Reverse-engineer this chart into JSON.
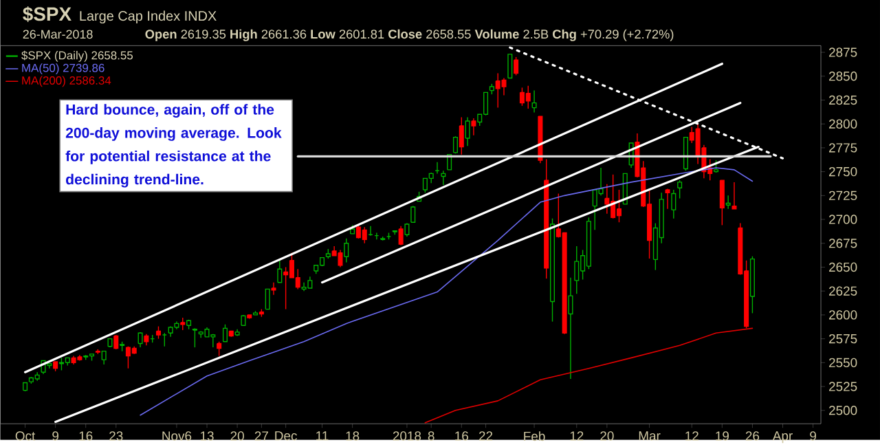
{
  "chart_data": {
    "type": "candlestick",
    "title": "$SPX",
    "subtitle": "Large Cap Index INDX",
    "annotations": [
      "26-Mar-2018",
      "**Open** 2619.35 **High** 2661.36 **Low** 2601.81 **Close** 2658.55 **Volume** 2.5B **Chg** +70.29 (+2.72%)",
      "Hard bounce, again, off of the 200-day moving average. Look for potential resistance at the declining trend-line."
    ],
    "ylim": [
      2486,
      2882
    ],
    "categories": [
      "Oct",
      null,
      null,
      null,
      null,
      "9",
      null,
      null,
      null,
      null,
      "16",
      null,
      null,
      null,
      null,
      "23",
      null,
      null,
      null,
      null,
      null,
      null,
      null,
      null,
      null,
      "Nov6",
      null,
      null,
      null,
      null,
      "13",
      null,
      null,
      null,
      null,
      "20",
      null,
      null,
      null,
      "27",
      null,
      null,
      null,
      "Dec",
      null,
      null,
      null,
      null,
      null,
      "11",
      null,
      null,
      null,
      null,
      "18",
      null,
      null,
      null,
      null,
      null,
      null,
      null,
      null,
      "2018",
      null,
      null,
      null,
      "8",
      null,
      null,
      null,
      null,
      "16",
      null,
      null,
      null,
      "22",
      null,
      null,
      null,
      null,
      null,
      null,
      null,
      "Feb",
      null,
      null,
      null,
      null,
      null,
      null,
      "12",
      null,
      null,
      null,
      null,
      "20",
      null,
      null,
      null,
      null,
      null,
      null,
      "Mar",
      null,
      null,
      null,
      null,
      null,
      null,
      "12",
      null,
      null,
      null,
      null,
      "19",
      null,
      null,
      null,
      null,
      "26",
      null,
      null,
      null,
      null,
      "Apr",
      null,
      null,
      null,
      null,
      "9"
    ],
    "yticks": [
      2500,
      2525,
      2550,
      2575,
      2600,
      2625,
      2650,
      2675,
      2700,
      2725,
      2750,
      2775,
      2800,
      2825,
      2850,
      2875
    ],
    "legend": "top left",
    "series": [
      {
        "name": "$SPX (Daily) 2658.55",
        "ohlc": [
          [
            2521,
            2529,
            2520,
            2529
          ],
          [
            2530,
            2535,
            2528,
            2534
          ],
          [
            2533,
            2540,
            2531,
            2537
          ],
          [
            2540,
            2552,
            2538,
            2552
          ],
          [
            2547,
            2549,
            2544,
            2549
          ],
          [
            2551,
            2551,
            2541,
            2544
          ],
          [
            2549,
            2555,
            2542,
            2550
          ],
          [
            2550,
            2555,
            2547,
            2555
          ],
          [
            2555,
            2557,
            2548,
            2550
          ],
          [
            2556,
            2558,
            2552,
            2553
          ],
          [
            2556,
            2558,
            2553,
            2557
          ],
          [
            2557,
            2559,
            2552,
            2559
          ],
          [
            2562,
            2564,
            2559,
            2561
          ],
          [
            2553,
            2562,
            2548,
            2562
          ],
          [
            2567,
            2575,
            2566,
            2575
          ],
          [
            2578,
            2579,
            2564,
            2565
          ],
          [
            2568,
            2572,
            2562,
            2569
          ],
          [
            2566,
            2567,
            2544,
            2557
          ],
          [
            2565,
            2567,
            2559,
            2560
          ],
          [
            2570,
            2582,
            2566,
            2581
          ],
          [
            2578,
            2580,
            2568,
            2572
          ],
          [
            2575,
            2579,
            2571,
            2575
          ],
          [
            2583,
            2588,
            2575,
            2579
          ],
          [
            2579,
            2581,
            2567,
            2579
          ],
          [
            2581,
            2588,
            2577,
            2587
          ],
          [
            2587,
            2593,
            2585,
            2591
          ],
          [
            2592,
            2597,
            2584,
            2590
          ],
          [
            2589,
            2595,
            2585,
            2594
          ],
          [
            2584,
            2586,
            2566,
            2585
          ],
          [
            2580,
            2583,
            2576,
            2582
          ],
          [
            2577,
            2587,
            2577,
            2585
          ],
          [
            2577,
            2580,
            2566,
            2579
          ],
          [
            2570,
            2572,
            2557,
            2565
          ],
          [
            2572,
            2590,
            2572,
            2586
          ],
          [
            2583,
            2583,
            2577,
            2578
          ],
          [
            2579,
            2585,
            2578,
            2582
          ],
          [
            2589,
            2600,
            2589,
            2599
          ],
          [
            2600,
            2600,
            2596,
            2597
          ],
          [
            2600,
            2604,
            2600,
            2602
          ],
          [
            2603,
            2606,
            2598,
            2601
          ],
          [
            2606,
            2627,
            2606,
            2627
          ],
          [
            2628,
            2634,
            2621,
            2626
          ],
          [
            2634,
            2657,
            2634,
            2648
          ],
          [
            2645,
            2650,
            2606,
            2642
          ],
          [
            2657,
            2665,
            2639,
            2639
          ],
          [
            2639,
            2648,
            2627,
            2629
          ],
          [
            2627,
            2634,
            2625,
            2629
          ],
          [
            2628,
            2640,
            2628,
            2636
          ],
          [
            2646,
            2652,
            2643,
            2652
          ],
          [
            2652,
            2660,
            2651,
            2660
          ],
          [
            2661,
            2669,
            2659,
            2664
          ],
          [
            2667,
            2672,
            2662,
            2662
          ],
          [
            2665,
            2668,
            2650,
            2652
          ],
          [
            2661,
            2680,
            2655,
            2675
          ],
          [
            2685,
            2694,
            2685,
            2690
          ],
          [
            2692,
            2694,
            2680,
            2681
          ],
          [
            2689,
            2692,
            2675,
            2679
          ],
          [
            2684,
            2693,
            2683,
            2684
          ],
          [
            2683,
            2686,
            2679,
            2683
          ],
          [
            2679,
            2682,
            2678,
            2680
          ],
          [
            2682,
            2686,
            2679,
            2682
          ],
          [
            2687,
            2688,
            2684,
            2688
          ],
          [
            2690,
            2693,
            2673,
            2674
          ],
          [
            2684,
            2696,
            2682,
            2695
          ],
          [
            2697,
            2714,
            2697,
            2713
          ],
          [
            2719,
            2729,
            2719,
            2724
          ],
          [
            2731,
            2743,
            2728,
            2743
          ],
          [
            2743,
            2749,
            2738,
            2748
          ],
          [
            2751,
            2760,
            2748,
            2751
          ],
          [
            2745,
            2751,
            2736,
            2748
          ],
          [
            2752,
            2768,
            2752,
            2768
          ],
          [
            2770,
            2787,
            2769,
            2786
          ],
          [
            2798,
            2807,
            2768,
            2776
          ],
          [
            2785,
            2807,
            2777,
            2803
          ],
          [
            2803,
            2806,
            2788,
            2798
          ],
          [
            2802,
            2810,
            2798,
            2810
          ],
          [
            2810,
            2833,
            2809,
            2833
          ],
          [
            2835,
            2842,
            2831,
            2839
          ],
          [
            2845,
            2853,
            2817,
            2837
          ],
          [
            2846,
            2848,
            2830,
            2839
          ],
          [
            2848,
            2873,
            2848,
            2873
          ],
          [
            2867,
            2870,
            2851,
            2853
          ],
          [
            2833,
            2838,
            2819,
            2822
          ],
          [
            2832,
            2840,
            2816,
            2824
          ],
          [
            2817,
            2835,
            2812,
            2822
          ],
          [
            2808,
            2808,
            2759,
            2762
          ],
          [
            2741,
            2763,
            2638,
            2649
          ],
          [
            2614,
            2701,
            2593,
            2695
          ],
          [
            2690,
            2727,
            2681,
            2682
          ],
          [
            2686,
            2686,
            2580,
            2581
          ],
          [
            2601,
            2639,
            2533,
            2620
          ],
          [
            2636,
            2672,
            2622,
            2656
          ],
          [
            2646,
            2668,
            2637,
            2662
          ],
          [
            2651,
            2702,
            2648,
            2698
          ],
          [
            2714,
            2731,
            2689,
            2731
          ],
          [
            2727,
            2754,
            2725,
            2732
          ],
          [
            2722,
            2737,
            2706,
            2716
          ],
          [
            2719,
            2747,
            2701,
            2702
          ],
          [
            2711,
            2731,
            2697,
            2704
          ],
          [
            2716,
            2748,
            2716,
            2748
          ],
          [
            2757,
            2780,
            2754,
            2780
          ],
          [
            2781,
            2790,
            2744,
            2745
          ],
          [
            2754,
            2761,
            2713,
            2714
          ],
          [
            2716,
            2730,
            2659,
            2678
          ],
          [
            2658,
            2696,
            2647,
            2691
          ],
          [
            2681,
            2728,
            2675,
            2721
          ],
          [
            2731,
            2732,
            2711,
            2728
          ],
          [
            2710,
            2731,
            2701,
            2727
          ],
          [
            2733,
            2741,
            2722,
            2739
          ],
          [
            2753,
            2786,
            2751,
            2786
          ],
          [
            2791,
            2797,
            2780,
            2783
          ],
          [
            2795,
            2801,
            2758,
            2766
          ],
          [
            2775,
            2778,
            2743,
            2750
          ],
          [
            2754,
            2763,
            2741,
            2748
          ],
          [
            2750,
            2762,
            2749,
            2752
          ],
          [
            2741,
            2741,
            2694,
            2712
          ],
          [
            2715,
            2725,
            2711,
            2717
          ],
          [
            2714,
            2739,
            2711,
            2711
          ],
          [
            2691,
            2696,
            2642,
            2643
          ],
          [
            2646,
            2657,
            2586,
            2588
          ],
          [
            2619.35,
            2661.36,
            2601.81,
            2658.55
          ],
          null,
          null,
          null,
          null,
          null,
          null,
          null,
          null,
          null,
          null
        ],
        "colors": [
          "#00b000",
          "#00b000",
          "#00b000",
          "#00b000",
          "#00b000",
          "#ff0000",
          "#00b000",
          "#00b000",
          "#ff0000",
          "#ff0000",
          "#00b000",
          "#00b000",
          "#ff0000",
          "#00b000",
          "#00b000",
          "#ff0000",
          "#00b000",
          "#ff0000",
          "#ff0000",
          "#00b000",
          "#ff0000",
          "#00b000",
          "#ff0000",
          "#00b000",
          "#00b000",
          "#00b000",
          "#ff0000",
          "#00b000",
          "#00b000",
          "#00b000",
          "#00b000",
          "#00b000",
          "#ff0000",
          "#00b000",
          "#ff0000",
          "#00b000",
          "#00b000",
          "#ff0000",
          "#00b000",
          "#ff0000",
          "#00b000",
          "#ff0000",
          "#00b000",
          "#ff0000",
          "#ff0000",
          "#ff0000",
          "#00b000",
          "#00b000",
          "#00b000",
          "#00b000",
          "#00b000",
          "#ff0000",
          "#ff0000",
          "#00b000",
          "#00b000",
          "#ff0000",
          "#ff0000",
          "#00b000",
          "#00b000",
          "#00b000",
          "#00b000",
          "#00b000",
          "#ff0000",
          "#00b000",
          "#00b000",
          "#00b000",
          "#00b000",
          "#00b000",
          "#00b000",
          "#00b000",
          "#00b000",
          "#00b000",
          "#ff0000",
          "#00b000",
          "#ff0000",
          "#00b000",
          "#00b000",
          "#00b000",
          "#ff0000",
          "#ff0000",
          "#00b000",
          "#ff0000",
          "#ff0000",
          "#ff0000",
          "#00b000",
          "#ff0000",
          "#ff0000",
          "#00b000",
          "#ff0000",
          "#ff0000",
          "#00b000",
          "#00b000",
          "#00b000",
          "#00b000",
          "#00b000",
          "#00b000",
          "#ff0000",
          "#ff0000",
          "#ff0000",
          "#00b000",
          "#00b000",
          "#ff0000",
          "#ff0000",
          "#ff0000",
          "#00b000",
          "#00b000",
          "#ff0000",
          "#00b000",
          "#00b000",
          "#00b000",
          "#ff0000",
          "#ff0000",
          "#ff0000",
          "#ff0000",
          "#00b000",
          "#ff0000",
          "#00b000",
          "#ff0000",
          "#ff0000",
          "#ff0000",
          "#00b000",
          null,
          null,
          null,
          null,
          null,
          null,
          null,
          null,
          null,
          null
        ]
      },
      {
        "type": "line",
        "name": "MA(50) 2739.86",
        "color": "#6a6af0",
        "values": [
          null,
          null,
          null,
          null,
          null,
          null,
          null,
          null,
          null,
          null,
          null,
          null,
          null,
          null,
          null,
          null,
          null,
          null,
          null,
          2495,
          null,
          null,
          null,
          null,
          null,
          null,
          null,
          null,
          null,
          null,
          2536,
          null,
          null,
          null,
          null,
          null,
          null,
          2552,
          null,
          null,
          null,
          null,
          null,
          null,
          null,
          null,
          2572,
          null,
          null,
          null,
          null,
          null,
          null,
          2591,
          null,
          null,
          null,
          null,
          null,
          null,
          null,
          null,
          null,
          null,
          null,
          null,
          null,
          null,
          2624,
          null,
          null,
          null,
          null,
          null,
          null,
          null,
          null,
          null,
          2678,
          null,
          null,
          null,
          null,
          null,
          null,
          2718,
          null,
          null,
          null,
          2725,
          null,
          null,
          null,
          null,
          null,
          null,
          null,
          null,
          null,
          null,
          2739,
          null,
          null,
          null,
          null,
          null,
          null,
          null,
          null,
          2749,
          null,
          null,
          null,
          null,
          2754,
          null,
          null,
          2752,
          null,
          null,
          2740,
          null,
          null,
          null,
          null,
          null,
          null,
          null,
          null,
          null,
          null
        ]
      },
      {
        "type": "line",
        "name": "MA(200) 2586.34",
        "color": "#e00000",
        "values": [
          null,
          null,
          null,
          null,
          null,
          null,
          null,
          null,
          null,
          null,
          null,
          null,
          null,
          null,
          null,
          null,
          null,
          null,
          null,
          null,
          null,
          null,
          null,
          null,
          null,
          null,
          null,
          null,
          null,
          null,
          null,
          null,
          null,
          null,
          null,
          null,
          null,
          null,
          null,
          null,
          null,
          null,
          null,
          null,
          null,
          null,
          null,
          null,
          null,
          null,
          null,
          null,
          null,
          null,
          null,
          null,
          null,
          null,
          null,
          null,
          null,
          null,
          null,
          null,
          null,
          null,
          2487,
          null,
          null,
          null,
          null,
          2500,
          null,
          null,
          null,
          null,
          null,
          null,
          2510,
          null,
          null,
          null,
          null,
          null,
          null,
          2532,
          null,
          null,
          null,
          null,
          null,
          null,
          null,
          2544,
          null,
          null,
          null,
          null,
          null,
          null,
          2555,
          null,
          null,
          null,
          null,
          null,
          null,
          null,
          2568,
          null,
          null,
          null,
          null,
          null,
          2581,
          null,
          null,
          null,
          null,
          null,
          2586,
          null,
          null,
          null,
          null,
          null,
          null,
          null,
          null,
          null,
          null
        ]
      },
      {
        "type": "line",
        "color": "#ffffff",
        "values": [
          2540,
          null,
          null,
          null,
          null,
          null,
          null,
          null,
          null,
          null,
          null,
          null,
          null,
          null,
          null,
          null,
          null,
          null,
          null,
          null,
          null,
          null,
          null,
          null,
          null,
          null,
          null,
          null,
          null,
          null,
          null,
          null,
          null,
          null,
          null,
          null,
          null,
          null,
          null,
          null,
          null,
          null,
          null,
          null,
          null,
          null,
          null,
          null,
          null,
          null,
          null,
          null,
          null,
          null,
          null,
          null,
          null,
          null,
          null,
          null,
          null,
          null,
          null,
          null,
          null,
          null,
          null,
          null,
          null,
          null,
          null,
          null,
          null,
          null,
          null,
          null,
          null,
          null,
          null,
          null,
          null,
          null,
          null,
          null,
          null,
          null,
          null,
          null,
          null,
          null,
          null,
          null,
          null,
          null,
          null,
          null,
          null,
          null,
          null,
          null,
          null,
          null,
          null,
          null,
          null,
          null,
          null,
          null,
          null,
          null,
          null,
          null,
          null,
          null,
          null,
          2863,
          null,
          null,
          null,
          null,
          null,
          null,
          null,
          null,
          null,
          null,
          null,
          null,
          null,
          null,
          null
        ]
      },
      {
        "type": "line",
        "color": "#ffffff",
        "values": [
          null,
          null,
          null,
          null,
          null,
          null,
          null,
          null,
          null,
          null,
          null,
          null,
          null,
          null,
          null,
          null,
          null,
          null,
          null,
          null,
          null,
          null,
          null,
          null,
          null,
          null,
          null,
          null,
          null,
          null,
          null,
          null,
          null,
          null,
          null,
          null,
          null,
          null,
          null,
          null,
          null,
          null,
          null,
          null,
          null,
          null,
          null,
          null,
          null,
          2634,
          null,
          null,
          null,
          null,
          null,
          null,
          null,
          null,
          null,
          null,
          null,
          null,
          null,
          null,
          null,
          null,
          null,
          null,
          null,
          null,
          null,
          null,
          null,
          null,
          null,
          null,
          null,
          null,
          null,
          null,
          null,
          null,
          null,
          null,
          null,
          null,
          null,
          null,
          null,
          null,
          null,
          null,
          null,
          null,
          null,
          null,
          null,
          null,
          null,
          null,
          null,
          null,
          null,
          null,
          null,
          null,
          null,
          null,
          null,
          null,
          null,
          null,
          null,
          null,
          null,
          null,
          null,
          null,
          2822,
          null,
          null,
          null,
          null,
          null,
          null,
          null,
          null,
          null,
          null,
          null,
          null
        ]
      },
      {
        "type": "line",
        "color": "#ffffff",
        "values": [
          null,
          null,
          null,
          null,
          null,
          2488,
          null,
          null,
          null,
          null,
          null,
          null,
          null,
          null,
          null,
          null,
          null,
          null,
          null,
          null,
          null,
          null,
          null,
          null,
          null,
          null,
          null,
          null,
          null,
          null,
          null,
          null,
          null,
          null,
          null,
          null,
          null,
          null,
          null,
          null,
          null,
          null,
          null,
          null,
          null,
          null,
          null,
          null,
          null,
          null,
          null,
          null,
          null,
          null,
          null,
          null,
          null,
          null,
          null,
          null,
          null,
          null,
          null,
          null,
          null,
          null,
          null,
          null,
          null,
          null,
          null,
          null,
          null,
          null,
          null,
          null,
          null,
          null,
          null,
          null,
          null,
          null,
          null,
          null,
          null,
          null,
          null,
          null,
          null,
          null,
          null,
          null,
          null,
          null,
          null,
          null,
          null,
          null,
          null,
          null,
          null,
          null,
          null,
          null,
          null,
          null,
          null,
          null,
          null,
          null,
          null,
          null,
          null,
          null,
          null,
          null,
          null,
          null,
          null,
          null,
          null,
          2776,
          null,
          null,
          null,
          null,
          null,
          null,
          null,
          null,
          null
        ]
      },
      {
        "type": "line",
        "color": "#d8d8d8",
        "values": [
          null,
          null,
          null,
          null,
          null,
          null,
          null,
          null,
          null,
          null,
          null,
          null,
          null,
          null,
          null,
          null,
          null,
          null,
          null,
          null,
          null,
          null,
          null,
          null,
          null,
          null,
          null,
          null,
          null,
          null,
          null,
          null,
          null,
          null,
          null,
          null,
          null,
          null,
          null,
          null,
          null,
          null,
          null,
          null,
          null,
          2766,
          null,
          null,
          null,
          null,
          null,
          null,
          null,
          null,
          null,
          null,
          null,
          null,
          null,
          null,
          null,
          null,
          null,
          null,
          null,
          null,
          null,
          null,
          null,
          null,
          null,
          null,
          null,
          null,
          null,
          null,
          null,
          null,
          null,
          null,
          null,
          null,
          null,
          null,
          null,
          null,
          null,
          null,
          null,
          null,
          null,
          null,
          null,
          null,
          null,
          null,
          null,
          null,
          null,
          null,
          null,
          null,
          null,
          null,
          null,
          null,
          null,
          null,
          null,
          null,
          null,
          null,
          null,
          null,
          null,
          null,
          null,
          null,
          null,
          null,
          null,
          null,
          null,
          2766,
          null,
          null,
          null,
          null,
          null,
          null,
          null
        ]
      },
      {
        "type": "line",
        "color": "#ffffff",
        "line_style": "dotted",
        "values": [
          null,
          null,
          null,
          null,
          null,
          null,
          null,
          null,
          null,
          null,
          null,
          null,
          null,
          null,
          null,
          null,
          null,
          null,
          null,
          null,
          null,
          null,
          null,
          null,
          null,
          null,
          null,
          null,
          null,
          null,
          null,
          null,
          null,
          null,
          null,
          null,
          null,
          null,
          null,
          null,
          null,
          null,
          null,
          null,
          null,
          null,
          null,
          null,
          null,
          null,
          null,
          null,
          null,
          null,
          null,
          null,
          null,
          null,
          null,
          null,
          null,
          null,
          null,
          null,
          null,
          null,
          null,
          null,
          null,
          null,
          null,
          null,
          null,
          null,
          null,
          null,
          null,
          null,
          null,
          null,
          2880,
          null,
          null,
          null,
          null,
          null,
          null,
          null,
          null,
          null,
          null,
          null,
          null,
          null,
          null,
          null,
          null,
          null,
          null,
          null,
          null,
          null,
          null,
          null,
          null,
          null,
          null,
          null,
          null,
          null,
          null,
          null,
          null,
          null,
          null,
          null,
          null,
          null,
          null,
          null,
          null,
          null,
          null,
          null,
          null,
          2764,
          null,
          null,
          null,
          null,
          null
        ]
      }
    ]
  }
}
